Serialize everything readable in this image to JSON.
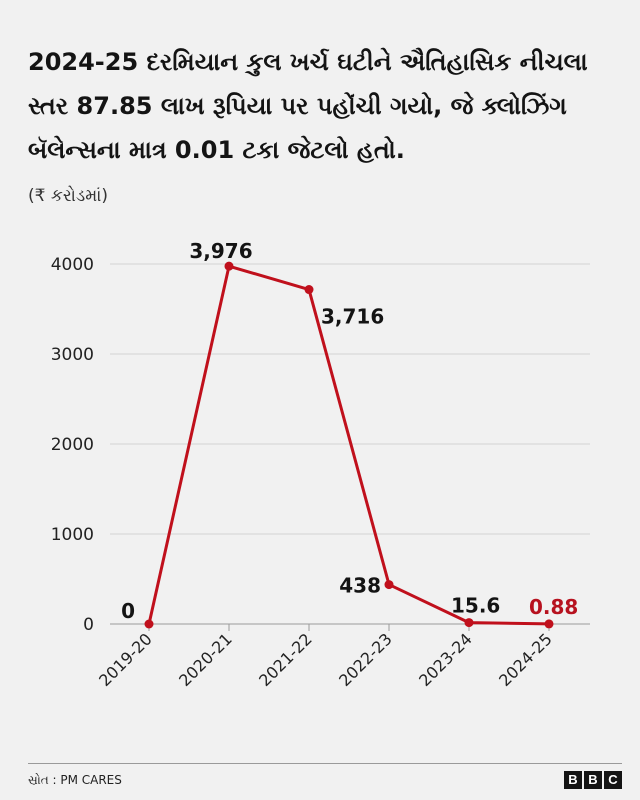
{
  "title": "2024-25 દરમિયાન કુલ ખર્ચ ઘટીને ઐતિહાસિક નીચલા સ્તર 87.85 લાખ રૂપિયા પર પહોંચી ગયો, જે ક્લોઝિંગ બૅલેન્સના માત્ર 0.01 ટકા જેટલો હતો.",
  "unit_label": "(₹ કરોડમાં)",
  "source": "સ્રોત : PM CARES",
  "brand": {
    "letters": [
      "B",
      "B",
      "C"
    ]
  },
  "colors": {
    "line": "#c0101c",
    "grid": "#d2d2d2",
    "highlight_label": "#b7121f",
    "text": "#141414"
  },
  "chart_data": {
    "type": "line",
    "categories": [
      "2019-20",
      "2020-21",
      "2021-22",
      "2022-23",
      "2023-24",
      "2024-25"
    ],
    "values": [
      0,
      3976,
      3716,
      438,
      15.6,
      0.88
    ],
    "data_labels": [
      "0",
      "3,976",
      "3,716",
      "438",
      "15.6",
      "0.88"
    ],
    "yticks": [
      0,
      1000,
      2000,
      3000,
      4000
    ],
    "ytick_labels": [
      "0",
      "1000",
      "2000",
      "3000",
      "4000"
    ],
    "ylim": [
      0,
      4000
    ],
    "grid": true,
    "highlight_index": 5
  }
}
